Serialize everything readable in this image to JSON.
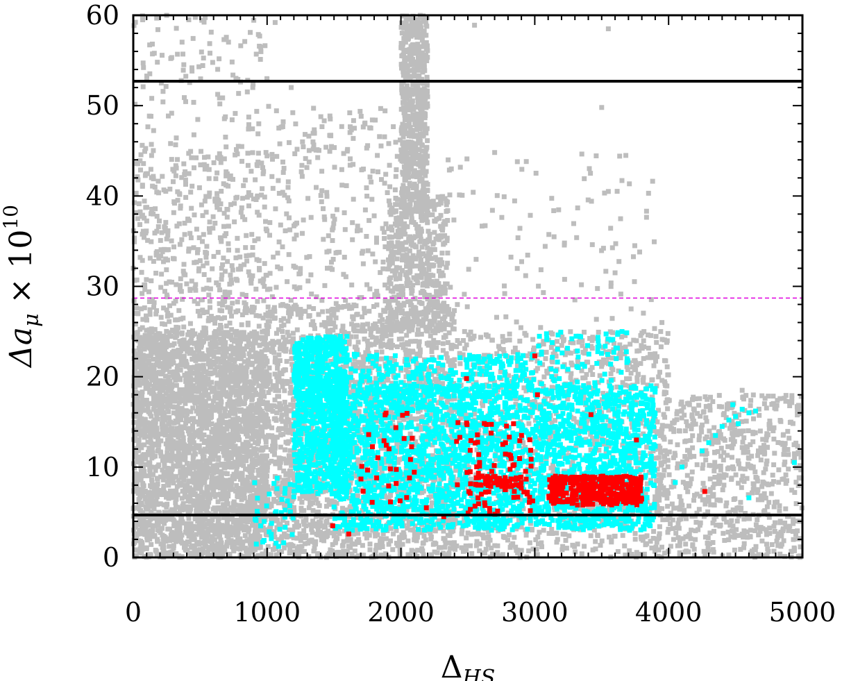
{
  "chart_data": {
    "type": "scatter",
    "title": "",
    "xlabel": "Δ",
    "xlabel_sub": "HS",
    "ylabel_main": "Δa",
    "ylabel_sub": "μ",
    "ylabel_times": " × 10",
    "ylabel_exp": "10",
    "xlim": [
      0,
      5000
    ],
    "ylim": [
      0,
      60
    ],
    "xticks": [
      0,
      1000,
      2000,
      3000,
      4000,
      5000
    ],
    "xtick_labels": [
      "0",
      "1000",
      "2000",
      "3000",
      "4000",
      "5000"
    ],
    "yticks": [
      0,
      10,
      20,
      30,
      40,
      50,
      60
    ],
    "ytick_labels": [
      "0",
      "10",
      "20",
      "30",
      "40",
      "50",
      "60"
    ],
    "grid": false,
    "legend": "none",
    "reference_lines": [
      {
        "y": 52.7,
        "style": "solid",
        "color": "#000000"
      },
      {
        "y": 4.7,
        "style": "solid",
        "color": "#000000"
      },
      {
        "y": 28.7,
        "style": "dashed",
        "color": "#e000e0"
      }
    ],
    "colors": {
      "gray": "#bdbdbd",
      "cyan": "#00ffff",
      "red": "#ff0000"
    },
    "series": [
      {
        "color": "gray",
        "regions": [
          {
            "x": [
              0,
              1000
            ],
            "y": [
              0,
              25
            ],
            "n": 3200
          },
          {
            "x": [
              0,
              1000
            ],
            "y": [
              25,
              45
            ],
            "n": 500
          },
          {
            "x": [
              0,
              1000
            ],
            "y": [
              45,
              60
            ],
            "n": 120
          },
          {
            "x": [
              1000,
              2400
            ],
            "y": [
              0,
              28
            ],
            "n": 2200
          },
          {
            "x": [
              1000,
              2000
            ],
            "y": [
              28,
              50
            ],
            "n": 250
          },
          {
            "x": [
              1900,
              2350
            ],
            "y": [
              25,
              40
            ],
            "n": 500
          },
          {
            "x": [
              2000,
              2200
            ],
            "y": [
              38,
              60
            ],
            "n": 650
          },
          {
            "x": [
              2350,
              4000
            ],
            "y": [
              0,
              25
            ],
            "n": 1200
          },
          {
            "x": [
              3900,
              5000
            ],
            "y": [
              0,
              18
            ],
            "n": 700
          },
          {
            "x": [
              2300,
              3900
            ],
            "y": [
              22,
              45
            ],
            "n": 120
          }
        ],
        "points": [
          [
            70,
            59.5
          ],
          [
            1060,
            59.2
          ],
          [
            3550,
            58.5
          ],
          [
            3500,
            49.8
          ],
          [
            2550,
            58.9
          ],
          [
            1180,
            52.0
          ],
          [
            3850,
            40.3
          ],
          [
            3550,
            40.5
          ],
          [
            3950,
            26.0
          ],
          [
            4900,
            13.2
          ],
          [
            4550,
            18.5
          ],
          [
            2870,
            43.8
          ],
          [
            3300,
            28.5
          ],
          [
            3600,
            31.5
          ],
          [
            3720,
            27.5
          ]
        ]
      },
      {
        "color": "cyan",
        "regions": [
          {
            "x": [
              1200,
              1600
            ],
            "y": [
              7,
              24.5
            ],
            "n": 900
          },
          {
            "x": [
              1500,
              3900
            ],
            "y": [
              3,
              19
            ],
            "n": 2600
          },
          {
            "x": [
              1600,
              3000
            ],
            "y": [
              18,
              22.5
            ],
            "n": 250
          },
          {
            "x": [
              900,
              1200
            ],
            "y": [
              1,
              9
            ],
            "n": 40
          },
          {
            "x": [
              3000,
              3700
            ],
            "y": [
              18,
              25
            ],
            "n": 80
          }
        ],
        "points": [
          [
            4400,
            14.5
          ],
          [
            4450,
            15.2
          ],
          [
            4500,
            15.6
          ],
          [
            4550,
            16.4
          ],
          [
            4600,
            16.0
          ],
          [
            4350,
            13.5
          ],
          [
            4300,
            12.7
          ],
          [
            4250,
            11.8
          ],
          [
            4650,
            16.2
          ],
          [
            4480,
            16.9
          ],
          [
            4520,
            14.8
          ],
          [
            4940,
            10.5
          ],
          [
            4600,
            6.6
          ],
          [
            4100,
            10.0
          ],
          [
            4050,
            8.3
          ],
          [
            3900,
            12.3
          ],
          [
            3850,
            13.1
          ]
        ]
      },
      {
        "color": "red",
        "regions": [
          {
            "x": [
              3100,
              3800
            ],
            "y": [
              5.8,
              9
            ],
            "n": 380
          },
          {
            "x": [
              1700,
              2100
            ],
            "y": [
              6,
              16
            ],
            "n": 30
          },
          {
            "x": [
              2400,
              3000
            ],
            "y": [
              4.5,
              15
            ],
            "n": 80
          },
          {
            "x": [
              2550,
              2900
            ],
            "y": [
              7.8,
              9
            ],
            "n": 60
          }
        ],
        "points": [
          [
            3000,
            22.3
          ],
          [
            3020,
            18.0
          ],
          [
            2490,
            19.8
          ],
          [
            1490,
            3.5
          ],
          [
            1610,
            2.6
          ],
          [
            4270,
            7.3
          ],
          [
            3760,
            13.0
          ],
          [
            3420,
            15.8
          ],
          [
            2320,
            4.5
          ],
          [
            2190,
            5.5
          ]
        ]
      }
    ]
  }
}
